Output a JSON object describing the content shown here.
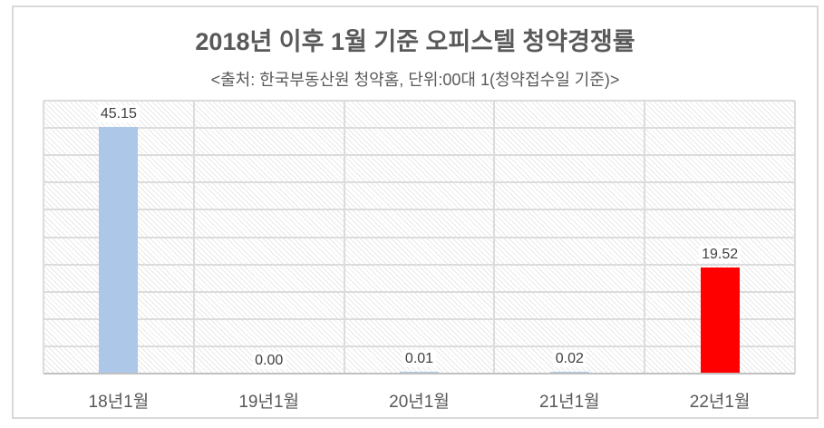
{
  "chart_data": {
    "type": "bar",
    "title": "2018년 이후 1월 기준 오피스텔 청약경쟁률",
    "subtitle": "<출처: 한국부동산원 청약홈, 단위:00대 1(청약접수일 기준)>",
    "categories": [
      "18년1월",
      "19년1월",
      "20년1월",
      "21년1월",
      "22년1월"
    ],
    "values": [
      45.15,
      0.0,
      0.01,
      0.02,
      19.52
    ],
    "data_labels": [
      "45.15",
      "0.00",
      "0.01",
      "0.02",
      "19.52"
    ],
    "bar_colors": [
      "#ACC7E8",
      "#ACC7E8",
      "#ACC7E8",
      "#ACC7E8",
      "#FF0000"
    ],
    "ylim": [
      0,
      50
    ],
    "gridline_step": 5,
    "grid": true,
    "legend_position": "none",
    "y_axis_labels_visible": false,
    "plot_pattern": "light-diagonal-hatch",
    "colors": {
      "title_text": "#595959",
      "subtitle_text": "#595959",
      "gridline": "#DCDCDC",
      "axis_line": "#C0C0C0",
      "data_label_text": "#404040",
      "category_label_text": "#595959",
      "chart_border": "#D9D9D9",
      "bar_default": "#ACC7E8",
      "bar_highlight": "#FF0000"
    }
  }
}
